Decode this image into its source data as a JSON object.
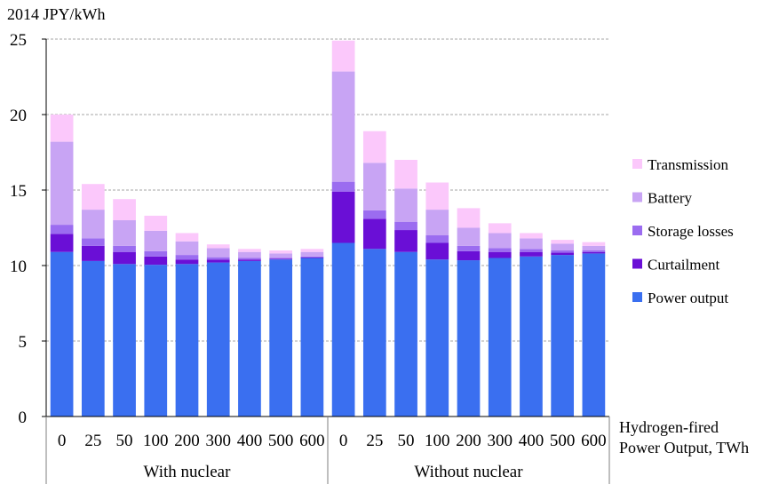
{
  "chart_data": {
    "type": "bar",
    "stacked": true,
    "ylabel": "2014 JPY/kWh",
    "xlabel": "Hydrogen-fired Power Output, TWh",
    "xlabel_lines": [
      "Hydrogen-fired",
      "Power Output, TWh"
    ],
    "ylim": [
      0,
      25
    ],
    "yticks": [
      0,
      5,
      10,
      15,
      20,
      25
    ],
    "grid": "horizontal dashed",
    "legend_position": "right",
    "groups": [
      {
        "name": "With nuclear",
        "categories": [
          "0",
          "25",
          "50",
          "100",
          "200",
          "300",
          "400",
          "500",
          "600"
        ]
      },
      {
        "name": "Without nuclear",
        "categories": [
          "0",
          "25",
          "50",
          "100",
          "200",
          "300",
          "400",
          "500",
          "600"
        ]
      }
    ],
    "series": [
      {
        "name": "Power output",
        "color": "#3a6ff0",
        "values": [
          10.9,
          10.3,
          10.1,
          10.05,
          10.1,
          10.2,
          10.3,
          10.4,
          10.5,
          11.5,
          11.1,
          10.9,
          10.4,
          10.35,
          10.5,
          10.6,
          10.7,
          10.8
        ]
      },
      {
        "name": "Curtailment",
        "color": "#6a0fd6",
        "values": [
          1.2,
          1.0,
          0.8,
          0.55,
          0.3,
          0.2,
          0.1,
          0.05,
          0.05,
          3.4,
          2.0,
          1.45,
          1.1,
          0.6,
          0.4,
          0.3,
          0.15,
          0.1
        ]
      },
      {
        "name": "Storage losses",
        "color": "#9b6cf0",
        "values": [
          0.6,
          0.5,
          0.4,
          0.35,
          0.3,
          0.15,
          0.1,
          0.05,
          0.05,
          0.65,
          0.55,
          0.55,
          0.5,
          0.35,
          0.25,
          0.2,
          0.15,
          0.1
        ]
      },
      {
        "name": "Battery",
        "color": "#c8a4f4",
        "values": [
          5.5,
          1.9,
          1.7,
          1.35,
          0.9,
          0.6,
          0.4,
          0.3,
          0.3,
          7.3,
          3.15,
          2.2,
          1.7,
          1.2,
          1.0,
          0.7,
          0.45,
          0.3
        ]
      },
      {
        "name": "Transmission",
        "color": "#fbc8fb",
        "values": [
          1.8,
          1.7,
          1.4,
          1.0,
          0.55,
          0.25,
          0.2,
          0.2,
          0.2,
          2.05,
          2.1,
          1.9,
          1.8,
          1.3,
          0.65,
          0.35,
          0.25,
          0.25
        ]
      }
    ]
  }
}
